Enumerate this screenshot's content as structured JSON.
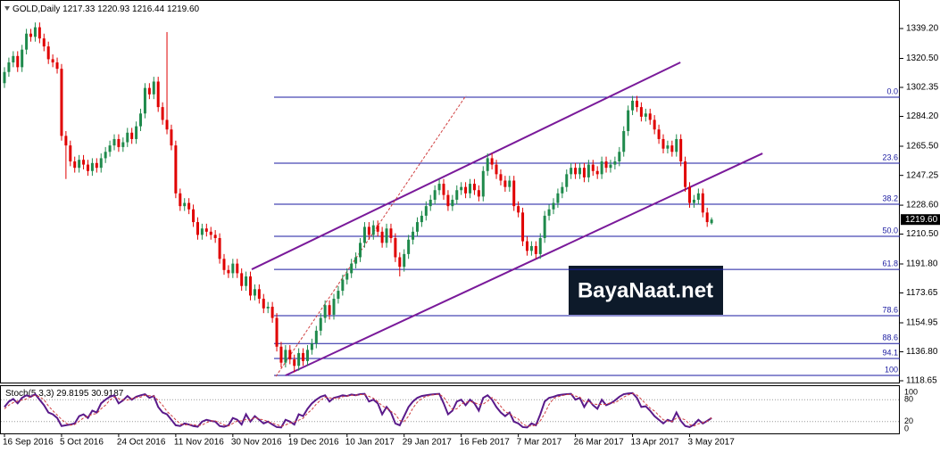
{
  "chart_data": {
    "type": "candlestick",
    "title": "GOLD,Daily",
    "ohlc_labels": [
      "1217.33",
      "1220.93",
      "1216.44",
      "1219.60"
    ],
    "up_color": "#1f8a4c",
    "down_color": "#e00000",
    "categories": [
      "16 Sep 2016",
      null,
      null,
      null,
      null,
      null,
      null,
      null,
      null,
      null,
      null,
      null,
      null,
      "5 Oct 2016",
      null,
      null,
      null,
      null,
      null,
      null,
      null,
      null,
      null,
      null,
      null,
      null,
      "24 Oct 2016",
      null,
      null,
      null,
      null,
      null,
      null,
      null,
      null,
      null,
      null,
      null,
      null,
      "11 Nov 2016",
      null,
      null,
      null,
      null,
      null,
      null,
      null,
      null,
      null,
      null,
      null,
      null,
      "30 Nov 2016",
      null,
      null,
      null,
      null,
      null,
      null,
      null,
      null,
      null,
      null,
      null,
      null,
      "19 Dec 2016",
      null,
      null,
      null,
      null,
      null,
      null,
      null,
      null,
      null,
      null,
      null,
      null,
      "10 Jan 2017",
      null,
      null,
      null,
      null,
      null,
      null,
      null,
      null,
      null,
      null,
      null,
      null,
      "29 Jan 2017",
      null,
      null,
      null,
      null,
      null,
      null,
      null,
      null,
      null,
      null,
      null,
      null,
      "16 Feb 2017",
      null,
      null,
      null,
      null,
      null,
      null,
      null,
      null,
      null,
      null,
      null,
      null,
      "7 Mar 2017",
      null,
      null,
      null,
      null,
      null,
      null,
      null,
      null,
      null,
      null,
      null,
      null,
      "26 Mar 2017",
      null,
      null,
      null,
      null,
      null,
      null,
      null,
      null,
      null,
      null,
      null,
      null,
      "13 Apr 2017",
      null,
      null,
      null,
      null,
      null,
      null,
      null,
      null,
      null,
      null,
      null,
      null,
      "3 May 2017",
      null,
      null,
      null,
      null,
      null
    ],
    "open": [
      1305,
      1312,
      1318,
      1322,
      1315,
      1326,
      1336,
      1334,
      1340,
      1333,
      1328,
      1320,
      1318,
      1314,
      1272,
      1266,
      1256,
      1252,
      1257,
      1254,
      1250,
      1255,
      1252,
      1258,
      1262,
      1266,
      1270,
      1265,
      1268,
      1274,
      1270,
      1278,
      1286,
      1302,
      1298,
      1306,
      1290,
      1282,
      1276,
      1266,
      1236,
      1228,
      1230,
      1226,
      1218,
      1210,
      1214,
      1212,
      1210,
      1208,
      1195,
      1188,
      1186,
      1192,
      1186,
      1178,
      1184,
      1172,
      1176,
      1170,
      1164,
      1165,
      1158,
      1140,
      1130,
      1138,
      1132,
      1128,
      1136,
      1131,
      1138,
      1142,
      1150,
      1158,
      1166,
      1160,
      1170,
      1175,
      1182,
      1186,
      1192,
      1196,
      1205,
      1215,
      1210,
      1216,
      1212,
      1205,
      1214,
      1208,
      1196,
      1190,
      1198,
      1207,
      1212,
      1218,
      1222,
      1228,
      1232,
      1238,
      1242,
      1235,
      1228,
      1232,
      1238,
      1240,
      1236,
      1242,
      1238,
      1234,
      1250,
      1258,
      1254,
      1248,
      1244,
      1240,
      1244,
      1228,
      1224,
      1206,
      1200,
      1203,
      1198,
      1208,
      1222,
      1226,
      1230,
      1236,
      1240,
      1248,
      1252,
      1248,
      1252,
      1246,
      1254,
      1250,
      1248,
      1256,
      1252,
      1254,
      1256,
      1262,
      1275,
      1288,
      1294,
      1290,
      1284,
      1286,
      1282,
      1276,
      1270,
      1264,
      1266,
      1262,
      1270,
      1256,
      1240,
      1230,
      1232,
      1236,
      1224,
      1217.33
    ],
    "high": [
      1315,
      1321,
      1325,
      1325,
      1329,
      1339,
      1339,
      1343,
      1343,
      1336,
      1331,
      1323,
      1321,
      1317,
      1275,
      1269,
      1259,
      1260,
      1260,
      1257,
      1258,
      1258,
      1261,
      1265,
      1269,
      1273,
      1273,
      1271,
      1277,
      1277,
      1281,
      1289,
      1305,
      1305,
      1309,
      1309,
      1293,
      1337,
      1279,
      1269,
      1239,
      1233,
      1233,
      1229,
      1221,
      1217,
      1217,
      1215,
      1213,
      1211,
      1198,
      1191,
      1195,
      1195,
      1189,
      1187,
      1187,
      1179,
      1179,
      1173,
      1168,
      1168,
      1161,
      1143,
      1141,
      1141,
      1135,
      1139,
      1139,
      1141,
      1145,
      1153,
      1161,
      1169,
      1169,
      1173,
      1178,
      1185,
      1189,
      1195,
      1199,
      1208,
      1218,
      1218,
      1219,
      1219,
      1215,
      1217,
      1217,
      1211,
      1199,
      1201,
      1210,
      1215,
      1221,
      1225,
      1231,
      1235,
      1241,
      1245,
      1245,
      1238,
      1235,
      1241,
      1243,
      1243,
      1245,
      1245,
      1241,
      1253,
      1261,
      1261,
      1257,
      1251,
      1247,
      1247,
      1247,
      1231,
      1227,
      1209,
      1206,
      1206,
      1211,
      1225,
      1229,
      1233,
      1239,
      1243,
      1251,
      1255,
      1255,
      1255,
      1255,
      1257,
      1257,
      1253,
      1259,
      1259,
      1257,
      1259,
      1265,
      1278,
      1291,
      1297,
      1297,
      1293,
      1289,
      1289,
      1285,
      1279,
      1273,
      1269,
      1269,
      1273,
      1273,
      1259,
      1243,
      1235,
      1239,
      1239,
      1227,
      1220.93
    ],
    "low": [
      1302,
      1309,
      1315,
      1312,
      1312,
      1323,
      1331,
      1331,
      1330,
      1325,
      1317,
      1315,
      1311,
      1269,
      1245,
      1253,
      1249,
      1249,
      1251,
      1247,
      1247,
      1249,
      1249,
      1255,
      1259,
      1263,
      1262,
      1262,
      1265,
      1267,
      1267,
      1275,
      1283,
      1295,
      1295,
      1287,
      1279,
      1273,
      1263,
      1233,
      1225,
      1225,
      1223,
      1215,
      1207,
      1207,
      1209,
      1207,
      1205,
      1192,
      1185,
      1183,
      1183,
      1183,
      1175,
      1175,
      1169,
      1169,
      1167,
      1161,
      1161,
      1155,
      1137,
      1127,
      1127,
      1129,
      1124,
      1125,
      1128,
      1128,
      1135,
      1139,
      1147,
      1155,
      1157,
      1157,
      1167,
      1172,
      1179,
      1183,
      1189,
      1193,
      1202,
      1207,
      1207,
      1209,
      1202,
      1202,
      1205,
      1193,
      1184,
      1187,
      1195,
      1204,
      1209,
      1215,
      1219,
      1225,
      1229,
      1235,
      1232,
      1225,
      1225,
      1229,
      1235,
      1233,
      1233,
      1235,
      1231,
      1231,
      1247,
      1251,
      1245,
      1241,
      1237,
      1237,
      1225,
      1221,
      1203,
      1197,
      1197,
      1195,
      1195,
      1205,
      1219,
      1223,
      1227,
      1233,
      1237,
      1245,
      1245,
      1245,
      1243,
      1243,
      1247,
      1245,
      1245,
      1249,
      1249,
      1251,
      1253,
      1259,
      1272,
      1285,
      1287,
      1281,
      1281,
      1279,
      1273,
      1267,
      1261,
      1261,
      1259,
      1259,
      1253,
      1237,
      1227,
      1227,
      1229,
      1221,
      1215,
      1216.44
    ],
    "close": [
      1312,
      1318,
      1322,
      1315,
      1326,
      1336,
      1334,
      1340,
      1333,
      1328,
      1320,
      1318,
      1314,
      1272,
      1266,
      1256,
      1252,
      1257,
      1254,
      1250,
      1255,
      1252,
      1258,
      1262,
      1266,
      1270,
      1265,
      1268,
      1274,
      1270,
      1278,
      1286,
      1302,
      1298,
      1306,
      1290,
      1282,
      1276,
      1266,
      1236,
      1228,
      1230,
      1226,
      1218,
      1210,
      1214,
      1212,
      1210,
      1208,
      1195,
      1188,
      1186,
      1192,
      1186,
      1178,
      1184,
      1172,
      1176,
      1170,
      1164,
      1165,
      1158,
      1140,
      1130,
      1138,
      1132,
      1128,
      1136,
      1131,
      1138,
      1142,
      1150,
      1158,
      1166,
      1160,
      1170,
      1175,
      1182,
      1186,
      1192,
      1196,
      1205,
      1215,
      1210,
      1216,
      1212,
      1205,
      1214,
      1208,
      1196,
      1190,
      1198,
      1207,
      1212,
      1218,
      1222,
      1228,
      1232,
      1238,
      1242,
      1235,
      1228,
      1232,
      1238,
      1240,
      1236,
      1242,
      1238,
      1234,
      1250,
      1258,
      1254,
      1248,
      1244,
      1240,
      1244,
      1228,
      1224,
      1206,
      1200,
      1203,
      1198,
      1208,
      1222,
      1226,
      1230,
      1236,
      1240,
      1248,
      1252,
      1248,
      1252,
      1246,
      1254,
      1250,
      1248,
      1256,
      1252,
      1254,
      1256,
      1262,
      1275,
      1288,
      1294,
      1290,
      1284,
      1286,
      1282,
      1276,
      1270,
      1264,
      1266,
      1262,
      1270,
      1256,
      1240,
      1230,
      1232,
      1236,
      1224,
      1218,
      1219.6
    ],
    "ylim": [
      1116.98,
      1357.07
    ],
    "yticks": [
      {
        "value": 1339.2,
        "label": "1339.20"
      },
      {
        "value": 1320.5,
        "label": "1320.50"
      },
      {
        "value": 1302.35,
        "label": "1302.35"
      },
      {
        "value": 1284.2,
        "label": "1284.20"
      },
      {
        "value": 1265.5,
        "label": "1265.50"
      },
      {
        "value": 1247.25,
        "label": "1247.25"
      },
      {
        "value": 1228.6,
        "label": "1228.60"
      },
      {
        "value": 1210.5,
        "label": "1210.50"
      },
      {
        "value": 1191.8,
        "label": "1191.80"
      },
      {
        "value": 1173.65,
        "label": "1173.65"
      },
      {
        "value": 1154.95,
        "label": "1154.95"
      },
      {
        "value": 1136.8,
        "label": "1136.80"
      },
      {
        "value": 1118.65,
        "label": "1118.65"
      }
    ],
    "fibonacci": {
      "color": "#1a1aa0",
      "levels": [
        {
          "label": "0.0",
          "price": 1296.2
        },
        {
          "label": "23.6",
          "price": 1254.9
        },
        {
          "label": "38.2",
          "price": 1229.2
        },
        {
          "label": "50.0",
          "price": 1209.1
        },
        {
          "label": "61.8",
          "price": 1188.4
        },
        {
          "label": "78.6",
          "price": 1159.4
        },
        {
          "label": "88.6",
          "price": 1142.0
        },
        {
          "label": "94.1",
          "price": 1132.6
        },
        {
          "label": "100",
          "price": 1122.0
        }
      ]
    },
    "trendlines": [
      {
        "color": "#7a1a9a",
        "x": [
          56.3,
          153.9
        ],
        "y": [
          1188.4,
          1318.0
        ]
      },
      {
        "color": "#7a1a9a",
        "x": [
          64.0,
          172.6
        ],
        "y": [
          1122.0,
          1261.0
        ]
      },
      {
        "color": "#d04040",
        "dashed": true,
        "x": [
          61.8,
          105.1
        ],
        "y": [
          1121.4,
          1297.3
        ]
      }
    ],
    "watermark": "BayaNaat.net",
    "stochastic": {
      "name": "Stoch(5,3,3)",
      "ylim": [
        0,
        100
      ],
      "yticks": [
        0,
        20,
        80,
        100
      ],
      "series": [
        {
          "name": "main",
          "color": "#5a1a8a",
          "values": [
            60,
            75,
            82,
            70,
            85,
            92,
            88,
            95,
            80,
            65,
            45,
            40,
            30,
            8,
            10,
            12,
            15,
            35,
            40,
            30,
            50,
            45,
            70,
            80,
            88,
            92,
            70,
            78,
            90,
            80,
            88,
            92,
            95,
            85,
            90,
            60,
            45,
            40,
            25,
            10,
            8,
            15,
            12,
            8,
            6,
            20,
            25,
            22,
            20,
            8,
            6,
            10,
            30,
            25,
            12,
            40,
            20,
            35,
            25,
            15,
            20,
            12,
            5,
            4,
            25,
            20,
            12,
            40,
            35,
            55,
            70,
            80,
            88,
            92,
            75,
            85,
            88,
            92,
            90,
            94,
            92,
            95,
            96,
            75,
            80,
            70,
            40,
            60,
            45,
            15,
            10,
            35,
            60,
            75,
            85,
            90,
            92,
            94,
            95,
            96,
            70,
            40,
            50,
            75,
            80,
            65,
            80,
            70,
            50,
            85,
            92,
            80,
            60,
            45,
            35,
            45,
            20,
            15,
            5,
            4,
            15,
            10,
            40,
            75,
            85,
            88,
            92,
            94,
            95,
            96,
            80,
            85,
            60,
            80,
            65,
            55,
            80,
            65,
            70,
            78,
            88,
            95,
            97,
            98,
            85,
            60,
            62,
            50,
            35,
            25,
            15,
            25,
            20,
            45,
            22,
            8,
            5,
            12,
            25,
            15,
            22,
            29.8195
          ]
        },
        {
          "name": "signal",
          "color": "#d04040",
          "dashed": true,
          "values": [
            55,
            65,
            72,
            76,
            79,
            82,
            88,
            92,
            88,
            80,
            63,
            50,
            38,
            26,
            16,
            10,
            12,
            21,
            30,
            35,
            40,
            42,
            55,
            65,
            79,
            87,
            83,
            80,
            79,
            83,
            86,
            87,
            92,
            91,
            90,
            78,
            65,
            48,
            37,
            25,
            14,
            11,
            12,
            12,
            9,
            11,
            17,
            22,
            22,
            17,
            11,
            8,
            15,
            22,
            22,
            26,
            24,
            32,
            27,
            25,
            20,
            16,
            12,
            7,
            11,
            16,
            19,
            24,
            29,
            43,
            53,
            68,
            79,
            87,
            85,
            84,
            83,
            88,
            90,
            92,
            92,
            94,
            94,
            89,
            84,
            75,
            63,
            57,
            48,
            40,
            23,
            20,
            35,
            57,
            73,
            83,
            89,
            92,
            94,
            95,
            87,
            69,
            53,
            55,
            68,
            73,
            75,
            72,
            67,
            68,
            76,
            86,
            77,
            62,
            47,
            42,
            33,
            27,
            13,
            8,
            8,
            10,
            22,
            42,
            67,
            83,
            88,
            91,
            94,
            95,
            90,
            87,
            75,
            75,
            68,
            67,
            67,
            67,
            72,
            71,
            79,
            87,
            93,
            97,
            93,
            81,
            69,
            57,
            49,
            37,
            25,
            22,
            20,
            30,
            29,
            25,
            12,
            8,
            14,
            17,
            21,
            30.9187
          ]
        }
      ]
    }
  }
}
